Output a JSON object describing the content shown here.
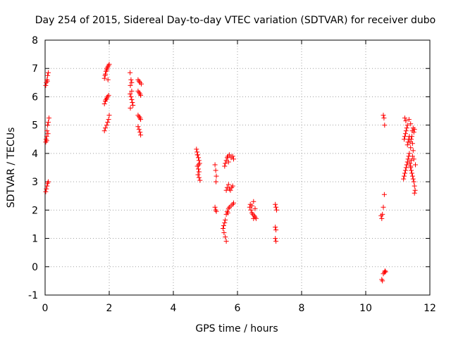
{
  "chart_data": {
    "type": "scatter",
    "title": "Day 254 of 2015, Sidereal Day-to-day VTEC variation (SDTVAR) for receiver dubo",
    "xlabel": "GPS time / hours",
    "ylabel": "SDTVAR / TECUs",
    "xlim": [
      0,
      12
    ],
    "ylim": [
      -1,
      8
    ],
    "xticks": [
      0,
      2,
      4,
      6,
      8,
      10,
      12
    ],
    "yticks": [
      -1,
      0,
      1,
      2,
      3,
      4,
      5,
      6,
      7,
      8
    ],
    "grid": true,
    "grid_style": "dotted",
    "marker": "+",
    "series": [
      {
        "name": "SDTVAR",
        "color": "#ff0000",
        "points": [
          [
            0.02,
            6.4
          ],
          [
            0.04,
            6.5
          ],
          [
            0.06,
            6.6
          ],
          [
            0.08,
            6.75
          ],
          [
            0.1,
            6.85
          ],
          [
            0.07,
            6.55
          ],
          [
            0.02,
            4.4
          ],
          [
            0.03,
            4.5
          ],
          [
            0.05,
            4.6
          ],
          [
            0.06,
            4.8
          ],
          [
            0.08,
            5.0
          ],
          [
            0.1,
            5.1
          ],
          [
            0.12,
            5.25
          ],
          [
            0.05,
            4.45
          ],
          [
            0.09,
            4.7
          ],
          [
            0.02,
            2.65
          ],
          [
            0.04,
            2.75
          ],
          [
            0.06,
            2.85
          ],
          [
            0.08,
            2.95
          ],
          [
            0.1,
            3.0
          ],
          [
            1.85,
            6.65
          ],
          [
            1.88,
            6.8
          ],
          [
            1.9,
            6.9
          ],
          [
            1.92,
            7.0
          ],
          [
            1.95,
            7.05
          ],
          [
            1.98,
            7.1
          ],
          [
            2.0,
            7.15
          ],
          [
            1.87,
            6.75
          ],
          [
            1.93,
            6.95
          ],
          [
            1.96,
            6.6
          ],
          [
            1.85,
            5.75
          ],
          [
            1.88,
            5.85
          ],
          [
            1.92,
            5.95
          ],
          [
            1.95,
            6.0
          ],
          [
            1.98,
            6.05
          ],
          [
            1.9,
            5.9
          ],
          [
            1.85,
            4.8
          ],
          [
            1.88,
            4.9
          ],
          [
            1.92,
            5.0
          ],
          [
            1.95,
            5.1
          ],
          [
            1.98,
            5.2
          ],
          [
            2.0,
            5.35
          ],
          [
            2.65,
            6.85
          ],
          [
            2.68,
            6.6
          ],
          [
            2.7,
            6.5
          ],
          [
            2.66,
            6.4
          ],
          [
            2.65,
            6.1
          ],
          [
            2.68,
            6.0
          ],
          [
            2.7,
            5.9
          ],
          [
            2.72,
            5.8
          ],
          [
            2.74,
            5.7
          ],
          [
            2.66,
            5.6
          ],
          [
            2.7,
            6.2
          ],
          [
            2.9,
            6.6
          ],
          [
            2.93,
            6.55
          ],
          [
            2.96,
            6.5
          ],
          [
            3.0,
            6.45
          ],
          [
            2.9,
            6.2
          ],
          [
            2.93,
            6.15
          ],
          [
            2.96,
            6.1
          ],
          [
            2.98,
            6.05
          ],
          [
            2.9,
            5.35
          ],
          [
            2.93,
            5.3
          ],
          [
            2.96,
            5.25
          ],
          [
            2.98,
            5.2
          ],
          [
            2.9,
            4.95
          ],
          [
            2.93,
            4.85
          ],
          [
            2.96,
            4.75
          ],
          [
            2.98,
            4.65
          ],
          [
            4.72,
            4.15
          ],
          [
            4.74,
            4.05
          ],
          [
            4.76,
            3.95
          ],
          [
            4.78,
            3.85
          ],
          [
            4.8,
            3.75
          ],
          [
            4.82,
            3.65
          ],
          [
            4.75,
            3.55
          ],
          [
            4.78,
            3.45
          ],
          [
            4.8,
            3.35
          ],
          [
            4.77,
            3.25
          ],
          [
            4.8,
            3.15
          ],
          [
            4.83,
            3.05
          ],
          [
            4.75,
            3.95
          ],
          [
            4.79,
            3.6
          ],
          [
            5.3,
            3.6
          ],
          [
            5.32,
            3.4
          ],
          [
            5.34,
            3.2
          ],
          [
            5.33,
            3.0
          ],
          [
            5.3,
            2.1
          ],
          [
            5.32,
            2.0
          ],
          [
            5.34,
            1.95
          ],
          [
            5.55,
            1.35
          ],
          [
            5.57,
            1.45
          ],
          [
            5.6,
            1.55
          ],
          [
            5.62,
            1.65
          ],
          [
            5.58,
            1.2
          ],
          [
            5.62,
            1.05
          ],
          [
            5.65,
            0.9
          ],
          [
            5.6,
            3.55
          ],
          [
            5.62,
            3.65
          ],
          [
            5.65,
            3.75
          ],
          [
            5.68,
            3.85
          ],
          [
            5.7,
            3.9
          ],
          [
            5.75,
            3.95
          ],
          [
            5.8,
            3.85
          ],
          [
            5.85,
            3.9
          ],
          [
            5.88,
            3.8
          ],
          [
            5.72,
            3.7
          ],
          [
            5.65,
            2.7
          ],
          [
            5.68,
            2.8
          ],
          [
            5.72,
            2.9
          ],
          [
            5.75,
            2.75
          ],
          [
            5.78,
            2.7
          ],
          [
            5.82,
            2.8
          ],
          [
            5.85,
            2.85
          ],
          [
            5.65,
            1.85
          ],
          [
            5.68,
            1.95
          ],
          [
            5.72,
            2.05
          ],
          [
            5.75,
            2.1
          ],
          [
            5.8,
            2.15
          ],
          [
            5.85,
            2.2
          ],
          [
            5.88,
            2.25
          ],
          [
            5.7,
            1.9
          ],
          [
            6.38,
            2.1
          ],
          [
            6.42,
            2.0
          ],
          [
            6.45,
            1.9
          ],
          [
            6.48,
            1.85
          ],
          [
            6.52,
            1.8
          ],
          [
            6.55,
            1.75
          ],
          [
            6.58,
            1.7
          ],
          [
            6.4,
            2.2
          ],
          [
            6.5,
            2.3
          ],
          [
            6.45,
            2.15
          ],
          [
            6.55,
            2.05
          ],
          [
            6.5,
            1.7
          ],
          [
            7.18,
            2.2
          ],
          [
            7.2,
            2.1
          ],
          [
            7.22,
            2.0
          ],
          [
            7.18,
            1.4
          ],
          [
            7.2,
            1.3
          ],
          [
            7.18,
            1.0
          ],
          [
            7.2,
            0.9
          ],
          [
            10.48,
            1.8
          ],
          [
            10.5,
            1.7
          ],
          [
            10.52,
            1.85
          ],
          [
            10.55,
            2.1
          ],
          [
            10.58,
            2.55
          ],
          [
            10.5,
            -0.45
          ],
          [
            10.52,
            -0.5
          ],
          [
            10.55,
            -0.25
          ],
          [
            10.58,
            -0.2
          ],
          [
            10.6,
            -0.15
          ],
          [
            10.62,
            -0.18
          ],
          [
            10.55,
            5.35
          ],
          [
            10.57,
            5.25
          ],
          [
            10.59,
            5.0
          ],
          [
            11.18,
            3.1
          ],
          [
            11.2,
            3.2
          ],
          [
            11.22,
            3.3
          ],
          [
            11.24,
            3.4
          ],
          [
            11.26,
            3.5
          ],
          [
            11.28,
            3.6
          ],
          [
            11.3,
            3.7
          ],
          [
            11.32,
            3.8
          ],
          [
            11.34,
            3.9
          ],
          [
            11.36,
            4.0
          ],
          [
            11.38,
            3.65
          ],
          [
            11.4,
            3.55
          ],
          [
            11.42,
            3.75
          ],
          [
            11.2,
            4.5
          ],
          [
            11.22,
            4.6
          ],
          [
            11.24,
            4.7
          ],
          [
            11.26,
            4.8
          ],
          [
            11.28,
            4.9
          ],
          [
            11.3,
            5.0
          ],
          [
            11.22,
            5.25
          ],
          [
            11.25,
            5.15
          ],
          [
            11.35,
            5.2
          ],
          [
            11.4,
            5.05
          ],
          [
            11.3,
            4.3
          ],
          [
            11.32,
            4.4
          ],
          [
            11.34,
            4.5
          ],
          [
            11.36,
            4.6
          ],
          [
            11.38,
            4.4
          ],
          [
            11.4,
            4.2
          ],
          [
            11.42,
            4.5
          ],
          [
            11.44,
            4.6
          ],
          [
            11.46,
            4.35
          ],
          [
            11.48,
            4.1
          ],
          [
            11.4,
            3.5
          ],
          [
            11.42,
            3.4
          ],
          [
            11.44,
            3.3
          ],
          [
            11.46,
            3.2
          ],
          [
            11.48,
            3.1
          ],
          [
            11.5,
            3.0
          ],
          [
            11.52,
            2.85
          ],
          [
            11.54,
            2.7
          ],
          [
            11.52,
            2.6
          ],
          [
            11.45,
            4.8
          ],
          [
            11.48,
            4.9
          ],
          [
            11.5,
            4.75
          ],
          [
            11.52,
            4.85
          ],
          [
            11.55,
            3.6
          ],
          [
            11.5,
            3.8
          ],
          [
            11.46,
            3.9
          ]
        ]
      }
    ]
  }
}
